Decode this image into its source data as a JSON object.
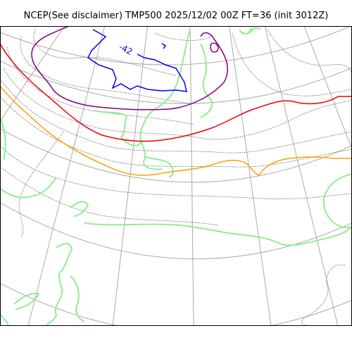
{
  "figure": {
    "title": "NCEP(See disclaimer) TMP500 2025/12/02 00Z FT=36 (init 3012Z)"
  },
  "contours": {
    "blue_label": "-42"
  },
  "colors": {
    "coastline": "#90ee90",
    "graticule": "#aaaaaa",
    "isotherm_dotted": "#555555",
    "blue_isotherm": "#0000ee",
    "purple_isotherm": "#800080",
    "red_isotherm": "#ee0000",
    "orange_isotherm": "#f5a300"
  }
}
